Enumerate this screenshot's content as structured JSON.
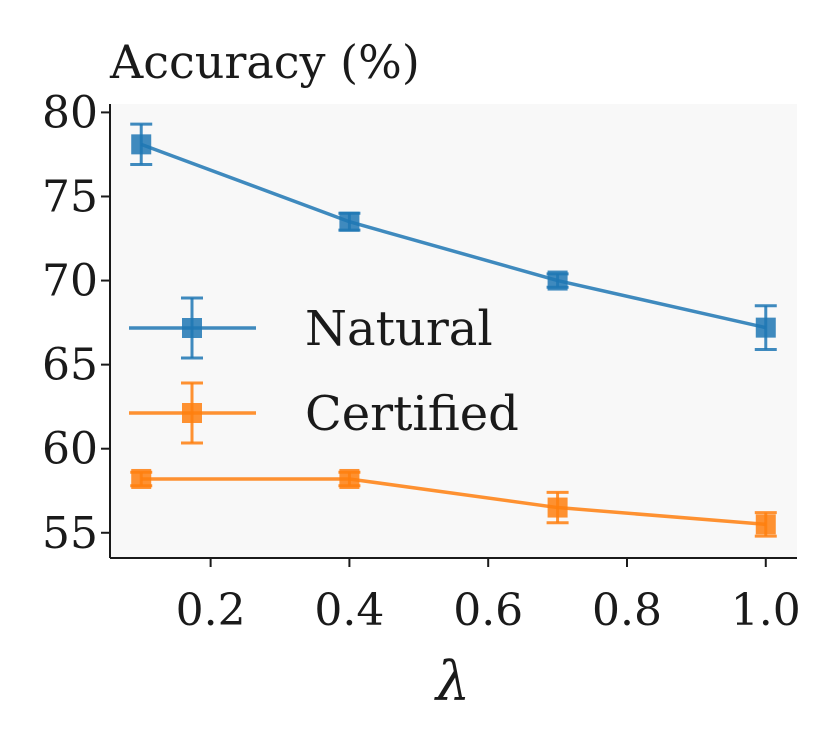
{
  "chart_data": {
    "type": "line",
    "title": "Accuracy (%)",
    "xlabel": "λ",
    "ylabel": "",
    "x": [
      0.1,
      0.4,
      0.7,
      1.0
    ],
    "xticks": [
      0.2,
      0.4,
      0.6,
      0.8,
      1.0
    ],
    "xtick_labels": [
      "0.2",
      "0.4",
      "0.6",
      "0.8",
      "1.0"
    ],
    "yticks": [
      55,
      60,
      65,
      70,
      75,
      80
    ],
    "ytick_labels": [
      "55",
      "60",
      "65",
      "70",
      "75",
      "80"
    ],
    "xlim": [
      0.055,
      1.045
    ],
    "ylim": [
      53.5,
      80.5
    ],
    "grid": false,
    "legend_position": "center-left",
    "series": [
      {
        "name": "Natural",
        "color": "#1f77b4",
        "marker": "square",
        "values": [
          78.1,
          73.5,
          70.0,
          67.2
        ],
        "errors": [
          1.2,
          0.5,
          0.4,
          1.3
        ]
      },
      {
        "name": "Certified",
        "color": "#ff7f0e",
        "marker": "square",
        "values": [
          58.2,
          58.2,
          56.5,
          55.5
        ],
        "errors": [
          0.4,
          0.4,
          0.9,
          0.7
        ]
      }
    ]
  }
}
